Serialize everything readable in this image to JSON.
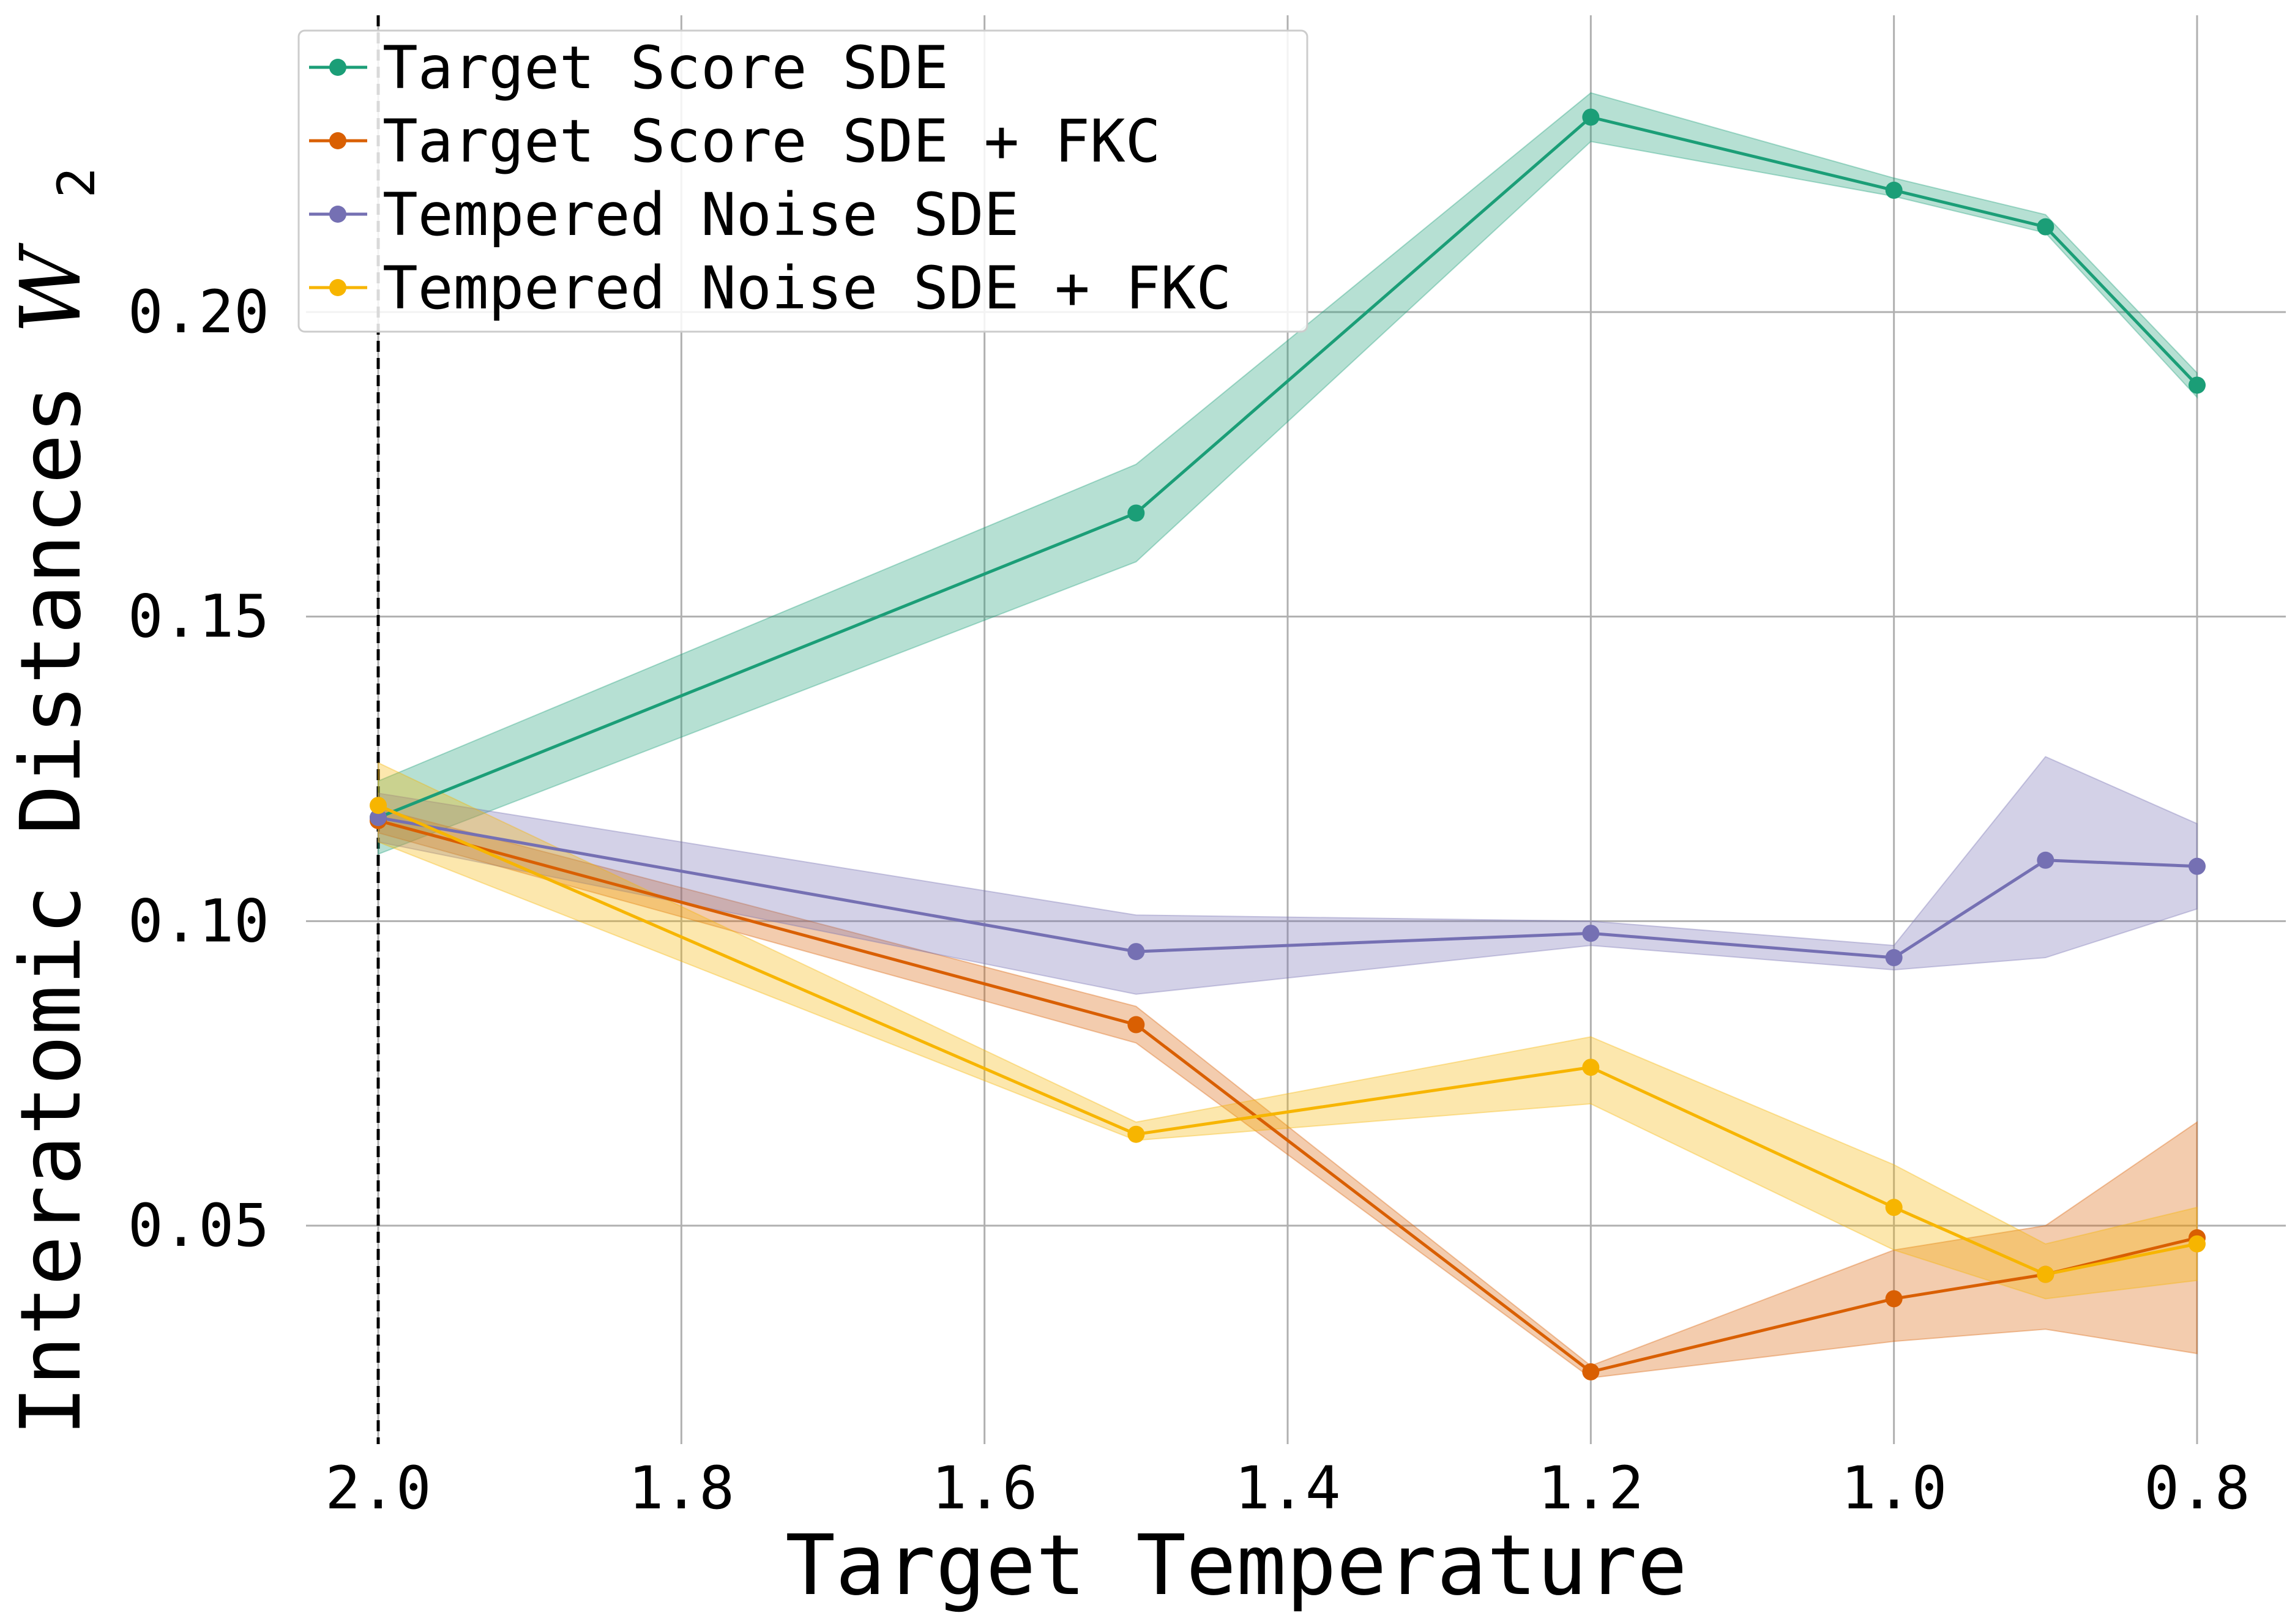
{
  "chart_data": {
    "type": "line",
    "xlabel": "Target Temperature",
    "ylabel": "Interatomic Distances",
    "ylabel_symbol": "W",
    "ylabel_subscript": "2",
    "x_ticks": [
      2.0,
      1.8,
      1.6,
      1.4,
      1.2,
      1.0,
      0.8
    ],
    "x_tick_labels": [
      "2.0",
      "1.8",
      "1.6",
      "1.4",
      "1.2",
      "1.0",
      "0.8"
    ],
    "y_ticks": [
      0.05,
      0.1,
      0.15,
      0.2
    ],
    "y_tick_labels": [
      "0.05",
      "0.10",
      "0.15",
      "0.20"
    ],
    "xlim": [
      2.0,
      0.8
    ],
    "ylim": [
      0.015,
      0.248
    ],
    "x_inverted": true,
    "grid": true,
    "reference_line": {
      "x": 2.0,
      "style": "dashed",
      "color": "#000000"
    },
    "legend_position": "upper-left",
    "x": [
      2.0,
      1.5,
      1.2,
      1.0,
      0.9,
      0.8
    ],
    "series": [
      {
        "name": "Target Score SDE",
        "color": "#1b9e77",
        "values": [
          0.117,
          0.167,
          0.232,
          0.22,
          0.214,
          0.188
        ],
        "lower": [
          0.111,
          0.159,
          0.228,
          0.219,
          0.213,
          0.186
        ],
        "upper": [
          0.123,
          0.175,
          0.236,
          0.222,
          0.216,
          0.19
        ]
      },
      {
        "name": "Target Score SDE + FKC",
        "color": "#d95f02",
        "values": [
          0.1165,
          0.083,
          0.026,
          0.038,
          0.042,
          0.048
        ],
        "lower": [
          0.1145,
          0.08,
          0.025,
          0.031,
          0.033,
          0.029
        ],
        "upper": [
          0.1185,
          0.086,
          0.027,
          0.046,
          0.05,
          0.067
        ]
      },
      {
        "name": "Tempered Noise SDE",
        "color": "#7570b3",
        "values": [
          0.117,
          0.095,
          0.098,
          0.094,
          0.11,
          0.109
        ],
        "lower": [
          0.113,
          0.088,
          0.096,
          0.092,
          0.094,
          0.102
        ],
        "upper": [
          0.121,
          0.101,
          0.1,
          0.096,
          0.127,
          0.116
        ]
      },
      {
        "name": "Tempered Noise SDE + FKC",
        "color": "#f7b500",
        "values": [
          0.119,
          0.065,
          0.076,
          0.053,
          0.042,
          0.047
        ],
        "lower": [
          0.113,
          0.064,
          0.07,
          0.046,
          0.038,
          0.041
        ],
        "upper": [
          0.126,
          0.067,
          0.081,
          0.06,
          0.047,
          0.053
        ]
      }
    ]
  }
}
